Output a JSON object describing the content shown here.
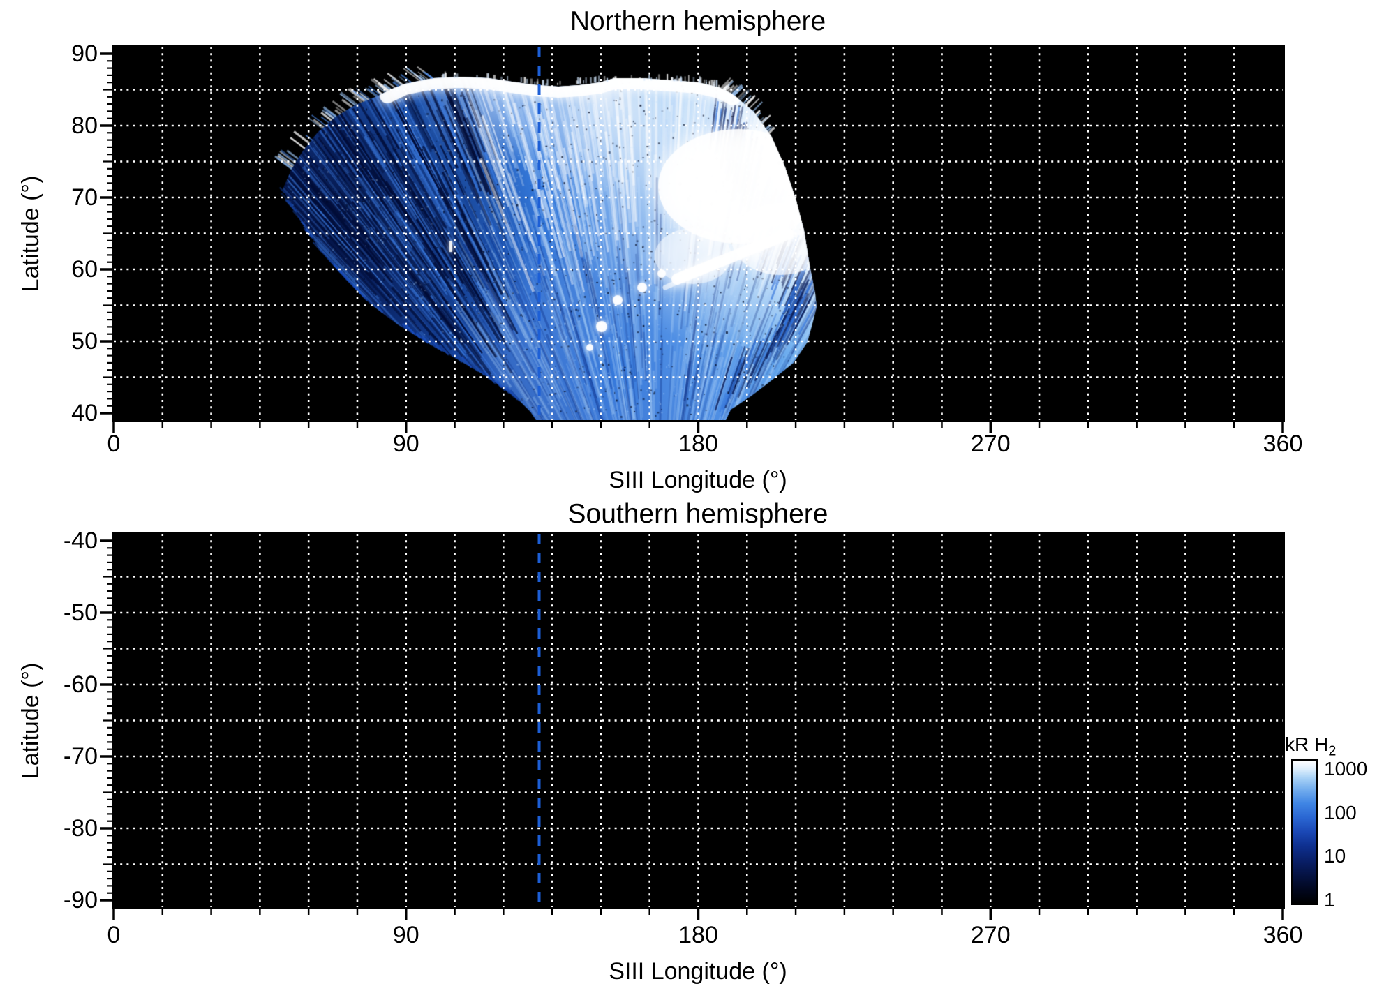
{
  "north": {
    "title": "Northern hemisphere",
    "xlabel": "SIII Longitude (°)",
    "ylabel": "Latitude (°)",
    "ytick_labels": [
      "90",
      "80",
      "70",
      "60",
      "50",
      "40"
    ],
    "xtick_labels": [
      "0",
      "90",
      "180",
      "270",
      "360"
    ]
  },
  "south": {
    "title": "Southern hemisphere",
    "xlabel": "SIII Longitude (°)",
    "ylabel": "Latitude (°)",
    "ytick_labels": [
      "-40",
      "-50",
      "-60",
      "-70",
      "-80",
      "-90"
    ],
    "xtick_labels": [
      "0",
      "90",
      "180",
      "270",
      "360"
    ]
  },
  "colorbar": {
    "title_main": "kR H",
    "title_sub": "2",
    "tick_labels": [
      "1000",
      "100",
      "10",
      "1"
    ]
  },
  "colors": {
    "grid": "#ffffff",
    "meridian_dash": "#1d5fd6",
    "plot_background": "#000000",
    "page_background": "#ffffff"
  },
  "chart_data": {
    "type": "heatmap",
    "description": "Two-panel polar-projection map of Jupiter UV auroral H2 emission brightness (logarithmic color scale in kiloRayleighs) plotted as latitude versus SIII longitude. Only the northern hemisphere swath contains data; the southern panel is empty (black).",
    "panels": [
      {
        "title": "Northern hemisphere",
        "xlabel": "SIII Longitude (°)",
        "ylabel": "Latitude (°)",
        "xlim": [
          0,
          360
        ],
        "ylim": [
          40,
          90
        ],
        "xticks_major": [
          0,
          90,
          180,
          270,
          360
        ],
        "yticks_major": [
          90,
          80,
          70,
          60,
          50,
          40
        ],
        "x_minor_tick_step_deg": 15,
        "y_minor_tick_step_deg": 1,
        "grid_x_step_deg": 15,
        "grid_y_step_deg": 5,
        "grid_style": "white dotted",
        "background": "black (no data)",
        "meridian_line_longitude_deg": 131,
        "meridian_line_style": "blue dashed vertical line, full height",
        "coverage": {
          "longitude_range_deg": [
            52,
            215
          ],
          "latitude_range_deg": [
            40,
            86.5
          ],
          "notes": "Fan-shaped observed swath of blue-to-white emission. Dark striated navy-blue filaments at the western edge (lon ~52–110°, lat ~55–85°); broad medium-blue emission toward lower latitudes (lat 40–55°, lon ~120–190°); very bright white auroral emission at lon ~150–215°, lat ~60–86°; bright white band hugging the poleward boundary near lat 84–86.5°; bright diagonal arc near lat 57–66°, lon 173–207°; chain of small bright spots near lat 51–58°, lon 148–165°; isolated small bright spot near lat 63°, lon 104°. Jagged comb-like edge fringes along swath boundaries."
        }
      },
      {
        "title": "Southern hemisphere",
        "xlabel": "SIII Longitude (°)",
        "ylabel": "Latitude (°)",
        "xlim": [
          0,
          360
        ],
        "ylim": [
          -90,
          -40
        ],
        "xticks_major": [
          0,
          90,
          180,
          270,
          360
        ],
        "yticks_major": [
          -40,
          -50,
          -60,
          -70,
          -80,
          -90
        ],
        "x_minor_tick_step_deg": 15,
        "y_minor_tick_step_deg": 1,
        "grid_x_step_deg": 15,
        "grid_y_step_deg": 5,
        "grid_style": "white dotted",
        "background": "black (no data)",
        "meridian_line_longitude_deg": 131,
        "meridian_line_style": "blue dashed vertical line, full height",
        "coverage": null
      }
    ],
    "colorbar": {
      "label": "kR H2",
      "scale": "log",
      "tick_values": [
        1000,
        100,
        10,
        1
      ],
      "range": [
        1,
        1000
      ],
      "colors_low_to_high": [
        "#000000",
        "#081c60",
        "#1a47b4",
        "#3f85e4",
        "#a9d2f6",
        "#ffffff"
      ],
      "legend_position": "lower right, outside southern panel"
    }
  }
}
